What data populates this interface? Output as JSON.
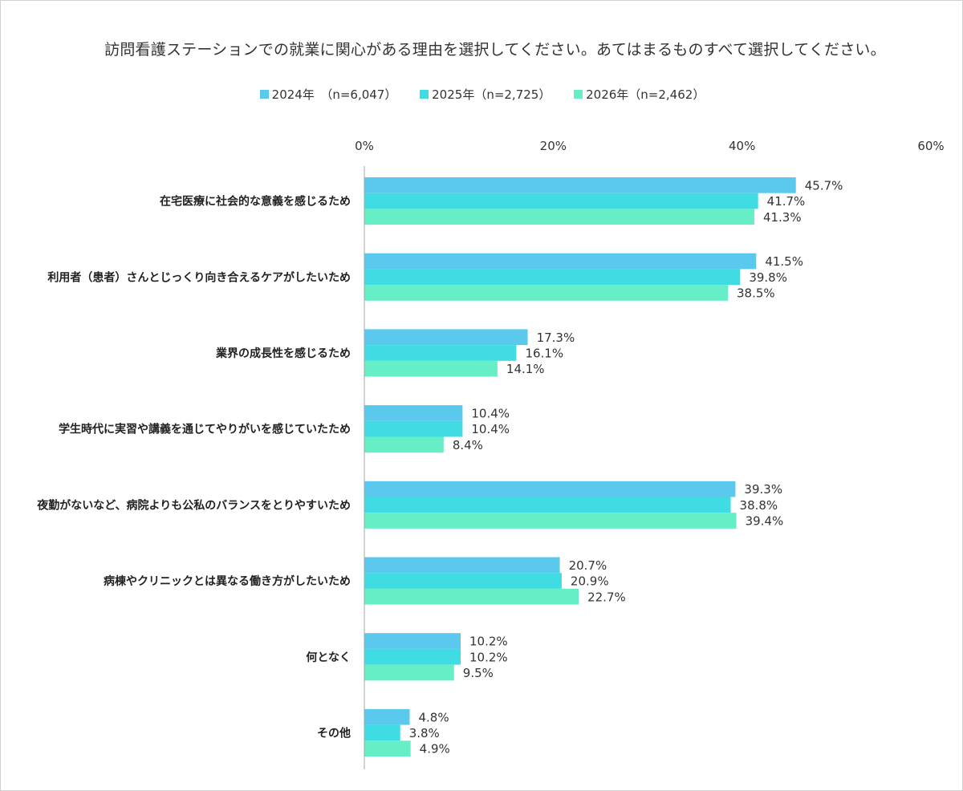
{
  "colors": {
    "series_2024": "#5bc9ee",
    "series_2025": "#3fdde3",
    "series_2026": "#66efc6",
    "axis": "#a6a6a6",
    "text": "#333333"
  },
  "chart_data": {
    "type": "bar",
    "orientation": "horizontal",
    "title": "訪問看護ステーションでの就業に関心がある理由を選択してください。あてはまるものすべて選択してください。",
    "xlim": [
      0,
      60
    ],
    "ticks": [
      0,
      20,
      40,
      60
    ],
    "tick_labels": [
      "0%",
      "20%",
      "40%",
      "60%"
    ],
    "tick_position": "top",
    "grid": false,
    "legend_position": "top-center",
    "categories": [
      "在宅医療に社会的な意義を感じるため",
      "利用者（患者）さんとじっくり向き合えるケアがしたいため",
      "業界の成長性を感じるため",
      "学生時代に実習や講義を通じてやりがいを感じていたため",
      "夜勤がないなど、病院よりも公私のバランスをとりやすいため",
      "病棟やクリニックとは異なる働き方がしたいため",
      "何となく",
      "その他"
    ],
    "series": [
      {
        "name": "2024年　（n=6,047）",
        "values": [
          45.7,
          41.5,
          17.3,
          10.4,
          39.3,
          20.7,
          10.2,
          4.8
        ],
        "labels": [
          "45.7%",
          "41.5%",
          "17.3%",
          "10.4%",
          "39.3%",
          "20.7%",
          "10.2%",
          "4.8%"
        ]
      },
      {
        "name": "2025年（n=2,725）",
        "values": [
          41.7,
          39.8,
          16.1,
          10.4,
          38.8,
          20.9,
          10.2,
          3.8
        ],
        "labels": [
          "41.7%",
          "39.8%",
          "16.1%",
          "10.4%",
          "38.8%",
          "20.9%",
          "10.2%",
          "3.8%"
        ]
      },
      {
        "name": "2026年（n=2,462）",
        "values": [
          41.3,
          38.5,
          14.1,
          8.4,
          39.4,
          22.7,
          9.5,
          4.9
        ],
        "labels": [
          "41.3%",
          "38.5%",
          "14.1%",
          "8.4%",
          "39.4%",
          "22.7%",
          "9.5%",
          "4.9%"
        ]
      }
    ]
  }
}
